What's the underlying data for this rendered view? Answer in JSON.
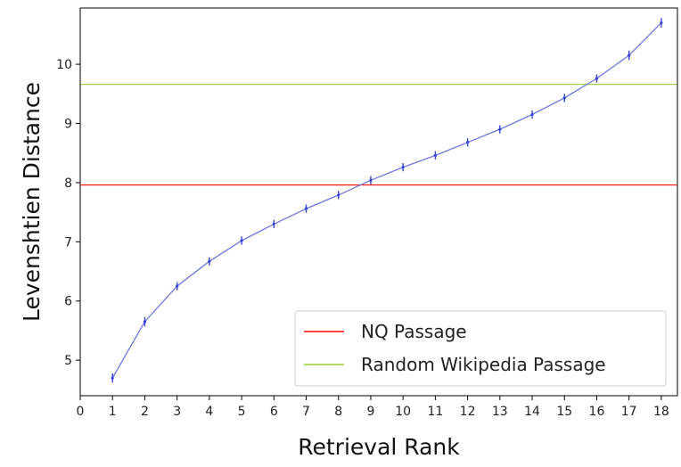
{
  "chart_data": {
    "type": "line",
    "title": "",
    "xlabel": "Retrieval Rank",
    "ylabel": "Levenshtien Distance",
    "xlim": [
      0,
      18.5
    ],
    "ylim": [
      4.4,
      10.95
    ],
    "xticks": [
      0,
      1,
      2,
      3,
      4,
      5,
      6,
      7,
      8,
      9,
      10,
      11,
      12,
      13,
      14,
      15,
      16,
      17,
      18
    ],
    "yticks": [
      5,
      6,
      7,
      8,
      9,
      10
    ],
    "grid": false,
    "legend_position": "lower-right",
    "series": [
      {
        "name": "",
        "color": "#6f77e0",
        "x": [
          1,
          2,
          3,
          4,
          5,
          6,
          7,
          8,
          9,
          10,
          11,
          12,
          13,
          14,
          15,
          16,
          17,
          18
        ],
        "y": [
          4.7,
          5.65,
          6.25,
          6.67,
          7.02,
          7.3,
          7.56,
          7.79,
          8.04,
          8.26,
          8.46,
          8.68,
          8.9,
          9.15,
          9.43,
          9.76,
          10.15,
          10.7
        ],
        "err": [
          0.08,
          0.08,
          0.07,
          0.07,
          0.07,
          0.07,
          0.07,
          0.07,
          0.07,
          0.07,
          0.07,
          0.07,
          0.07,
          0.07,
          0.07,
          0.07,
          0.08,
          0.08
        ]
      }
    ],
    "hlines": [
      {
        "name": "NQ Passage",
        "y": 7.96,
        "color": "#ff0000"
      },
      {
        "name": "Random Wikipedia Passage",
        "y": 9.66,
        "color": "#9acd32"
      }
    ]
  }
}
